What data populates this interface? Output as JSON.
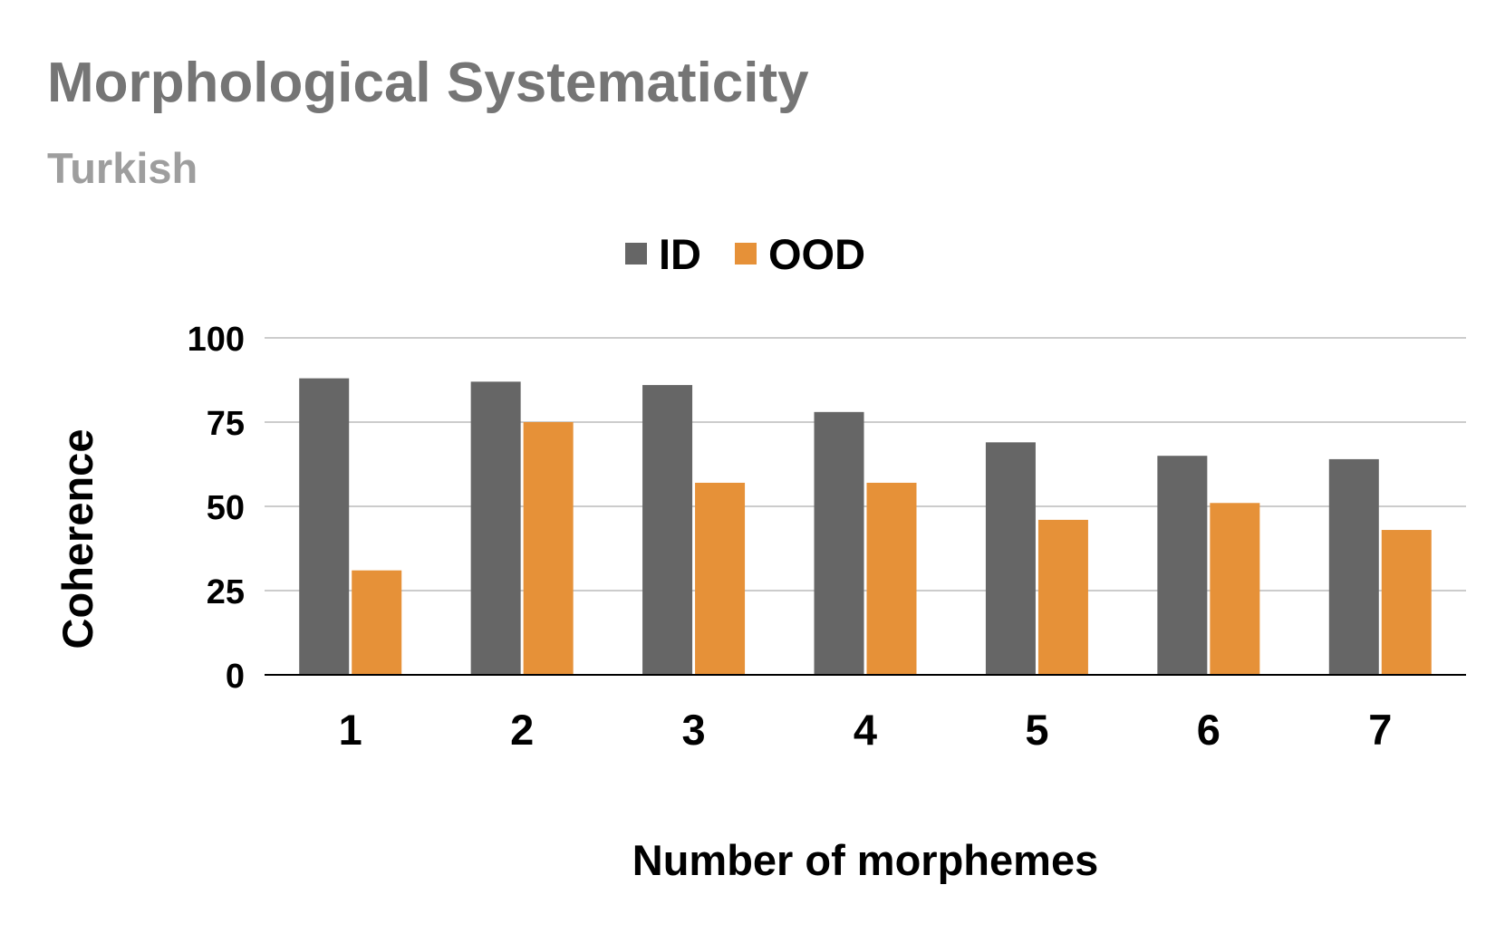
{
  "chart_data": {
    "type": "bar",
    "title": "Morphological Systematicity",
    "subtitle": "Turkish",
    "xlabel": "Number of morphemes",
    "ylabel": "Coherence",
    "categories": [
      "1",
      "2",
      "3",
      "4",
      "5",
      "6",
      "7"
    ],
    "series": [
      {
        "name": "ID",
        "color": "#666666",
        "values": [
          88,
          87,
          86,
          78,
          69,
          65,
          64
        ]
      },
      {
        "name": "OOD",
        "color": "#E69138",
        "values": [
          31,
          75,
          57,
          57,
          46,
          51,
          43
        ]
      }
    ],
    "ylim": [
      0,
      100
    ],
    "yticks": [
      0,
      25,
      50,
      75,
      100
    ],
    "grid": true,
    "legend_position": "top",
    "colors": {
      "title": "#757575",
      "subtitle": "#9e9e9e",
      "gridline": "#cccccc",
      "axis": "#000000"
    }
  }
}
